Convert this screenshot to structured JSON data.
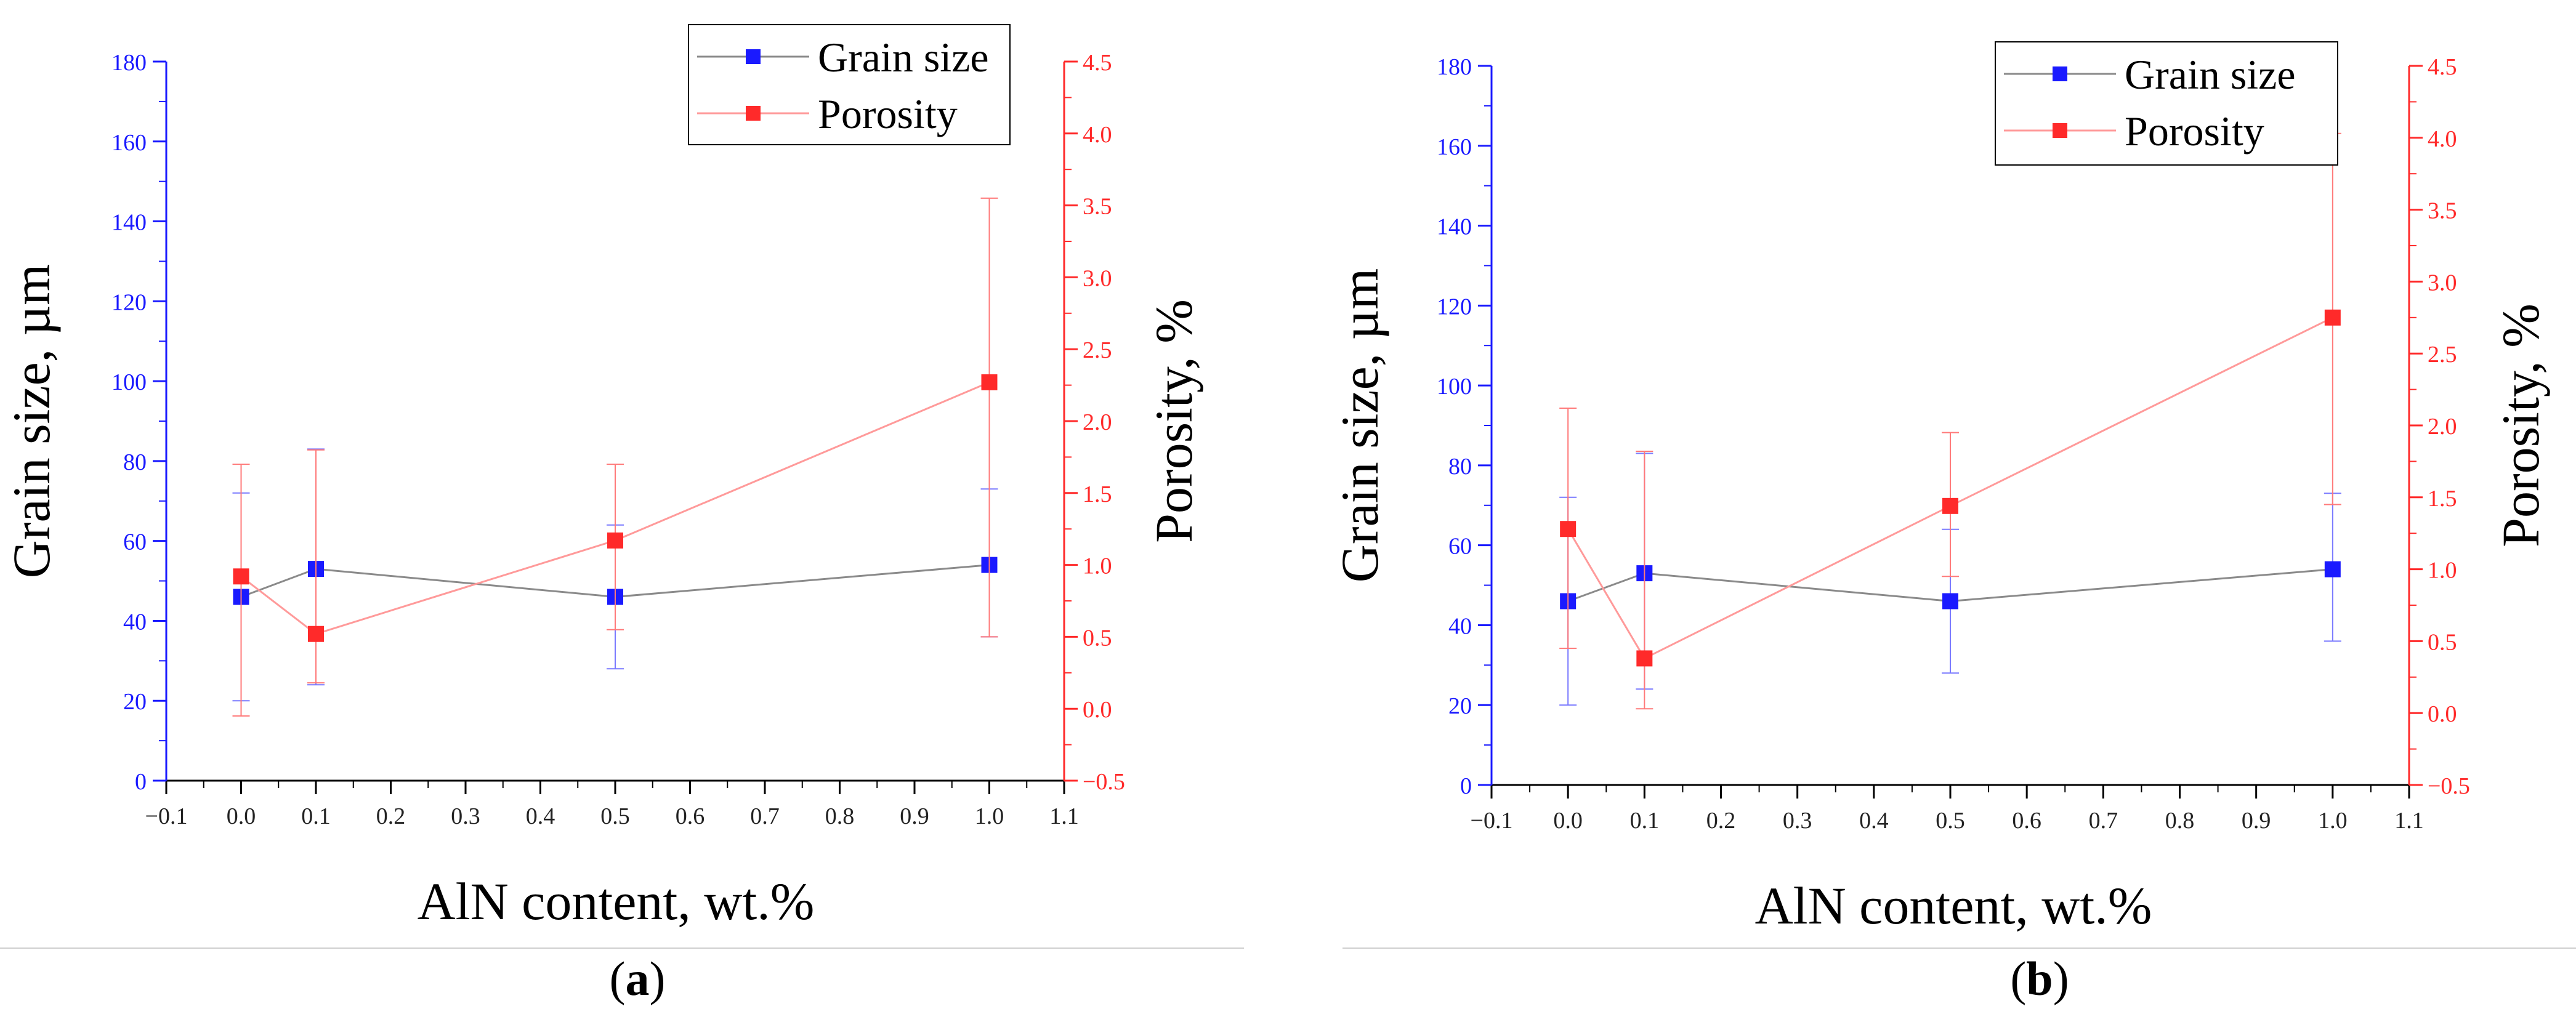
{
  "chart_data": [
    {
      "id": "a",
      "type": "line",
      "caption": "a",
      "xlabel": "AlN content, wt.%",
      "ylabel_left": "Grain size, µm",
      "ylabel_right": "Porosity, %",
      "xlim": [
        -0.1,
        1.1
      ],
      "ylim_left": [
        0,
        180
      ],
      "ylim_right": [
        -0.5,
        4.5
      ],
      "xticks": [
        "-0.1",
        "0.0",
        "0.1",
        "0.2",
        "0.3",
        "0.4",
        "0.5",
        "0.6",
        "0.7",
        "0.8",
        "0.9",
        "1.0",
        "1.1"
      ],
      "yticks_left": [
        "0",
        "20",
        "40",
        "60",
        "80",
        "100",
        "120",
        "140",
        "160",
        "180"
      ],
      "yticks_right": [
        "-0.5",
        "0.0",
        "0.5",
        "1.0",
        "1.5",
        "2.0",
        "2.5",
        "3.0",
        "3.5",
        "4.0",
        "4.5"
      ],
      "legend": [
        "Grain size",
        "Porosity"
      ],
      "legend_position": "top-right",
      "colors": {
        "grain": "#1a1aff",
        "grain_line": "#8a8a8a",
        "porosity": "#ff2a2a",
        "porosity_line": "#ff9a9a",
        "axis_left": "#1a1aff",
        "axis_right": "#ff2a2a"
      },
      "series": [
        {
          "name": "Grain size",
          "axis": "left",
          "x": [
            0.0,
            0.1,
            0.5,
            1.0
          ],
          "y": [
            46,
            53,
            46,
            54
          ],
          "err_low": [
            20,
            24,
            28,
            36
          ],
          "err_high": [
            72,
            83,
            64,
            73
          ]
        },
        {
          "name": "Porosity",
          "axis": "right",
          "x": [
            0.0,
            0.1,
            0.5,
            1.0
          ],
          "y": [
            0.92,
            0.52,
            1.17,
            2.27
          ],
          "err_low": [
            -0.05,
            0.18,
            0.55,
            0.5
          ],
          "err_high": [
            1.7,
            1.8,
            1.7,
            3.55
          ]
        }
      ]
    },
    {
      "id": "b",
      "type": "line",
      "caption": "b",
      "xlabel": "AlN content, wt.%",
      "ylabel_left": "Grain size, µm",
      "ylabel_right": "Porosity, %",
      "xlim": [
        -0.1,
        1.1
      ],
      "ylim_left": [
        0,
        180
      ],
      "ylim_right": [
        -0.5,
        4.5
      ],
      "xticks": [
        "-0.1",
        "0.0",
        "0.1",
        "0.2",
        "0.3",
        "0.4",
        "0.5",
        "0.6",
        "0.7",
        "0.8",
        "0.9",
        "1.0",
        "1.1"
      ],
      "yticks_left": [
        "0",
        "20",
        "40",
        "60",
        "80",
        "100",
        "120",
        "140",
        "160",
        "180"
      ],
      "yticks_right": [
        "-0.5",
        "0.0",
        "0.5",
        "1.0",
        "1.5",
        "2.0",
        "2.5",
        "3.0",
        "3.5",
        "4.0",
        "4.5"
      ],
      "legend": [
        "Grain size",
        "Porosity"
      ],
      "legend_position": "top-right",
      "colors": {
        "grain": "#1a1aff",
        "grain_line": "#8a8a8a",
        "porosity": "#ff2a2a",
        "porosity_line": "#ff9a9a",
        "axis_left": "#1a1aff",
        "axis_right": "#ff2a2a"
      },
      "series": [
        {
          "name": "Grain size",
          "axis": "left",
          "x": [
            0.0,
            0.1,
            0.5,
            1.0
          ],
          "y": [
            46,
            53,
            46,
            54
          ],
          "err_low": [
            20,
            24,
            28,
            36
          ],
          "err_high": [
            72,
            83,
            64,
            73
          ]
        },
        {
          "name": "Porosity",
          "axis": "right",
          "x": [
            0.0,
            0.1,
            0.5,
            1.0
          ],
          "y": [
            1.28,
            0.38,
            1.44,
            2.75
          ],
          "err_low": [
            0.45,
            0.03,
            0.95,
            1.45
          ],
          "err_high": [
            2.12,
            1.82,
            1.95,
            4.03
          ]
        }
      ]
    }
  ]
}
